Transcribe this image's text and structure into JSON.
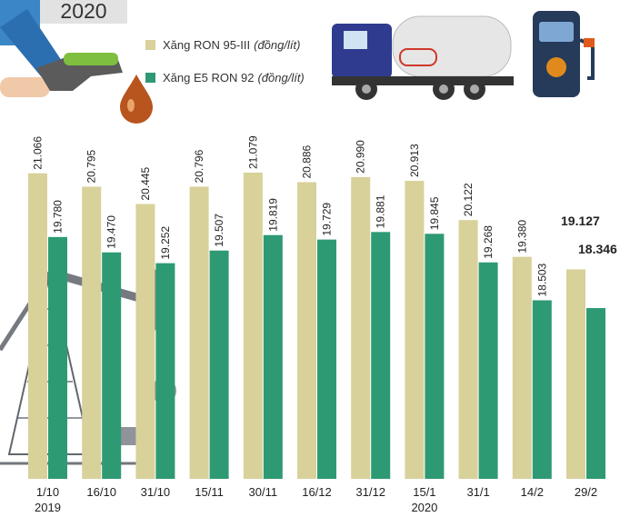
{
  "header": {
    "year": "2020"
  },
  "legend": [
    {
      "name": "Xăng RON 95-III",
      "unit": "(đồng/lít)",
      "color": "#d8d19a"
    },
    {
      "name": "Xăng E5 RON 92",
      "unit": "(đồng/lít)",
      "color": "#2e9a73"
    }
  ],
  "icons": [
    "fuel-nozzle-icon",
    "oil-drop-icon",
    "tanker-truck-icon",
    "fuel-pump-icon",
    "oil-pumpjack-icon"
  ],
  "chart_data": {
    "type": "bar",
    "categories": [
      "1/10",
      "16/10",
      "31/10",
      "15/11",
      "30/11",
      "16/12",
      "31/12",
      "15/1",
      "31/1",
      "14/2",
      "29/2"
    ],
    "category_sublabels": [
      "2019",
      "",
      "",
      "",
      "",
      "",
      "",
      "2020",
      "",
      "",
      ""
    ],
    "series": [
      {
        "name": "Xăng RON 95-III",
        "color": "#d8d19a",
        "values": [
          21066,
          20795,
          20445,
          20796,
          21079,
          20886,
          20990,
          20913,
          20122,
          19380,
          19127
        ],
        "labels": [
          "21.066",
          "20.795",
          "20.445",
          "20.796",
          "21.079",
          "20.886",
          "20.990",
          "20.913",
          "20.122",
          "19.380",
          "19.127"
        ]
      },
      {
        "name": "Xăng E5 RON 92",
        "color": "#2e9a73",
        "values": [
          19780,
          19470,
          19252,
          19507,
          19819,
          19729,
          19881,
          19845,
          19268,
          18503,
          18346
        ],
        "labels": [
          "19.780",
          "19.470",
          "19.252",
          "19.507",
          "19.819",
          "19.729",
          "19.881",
          "19.845",
          "19.268",
          "18.503",
          "18.346"
        ]
      }
    ],
    "highlight_last": true
  }
}
